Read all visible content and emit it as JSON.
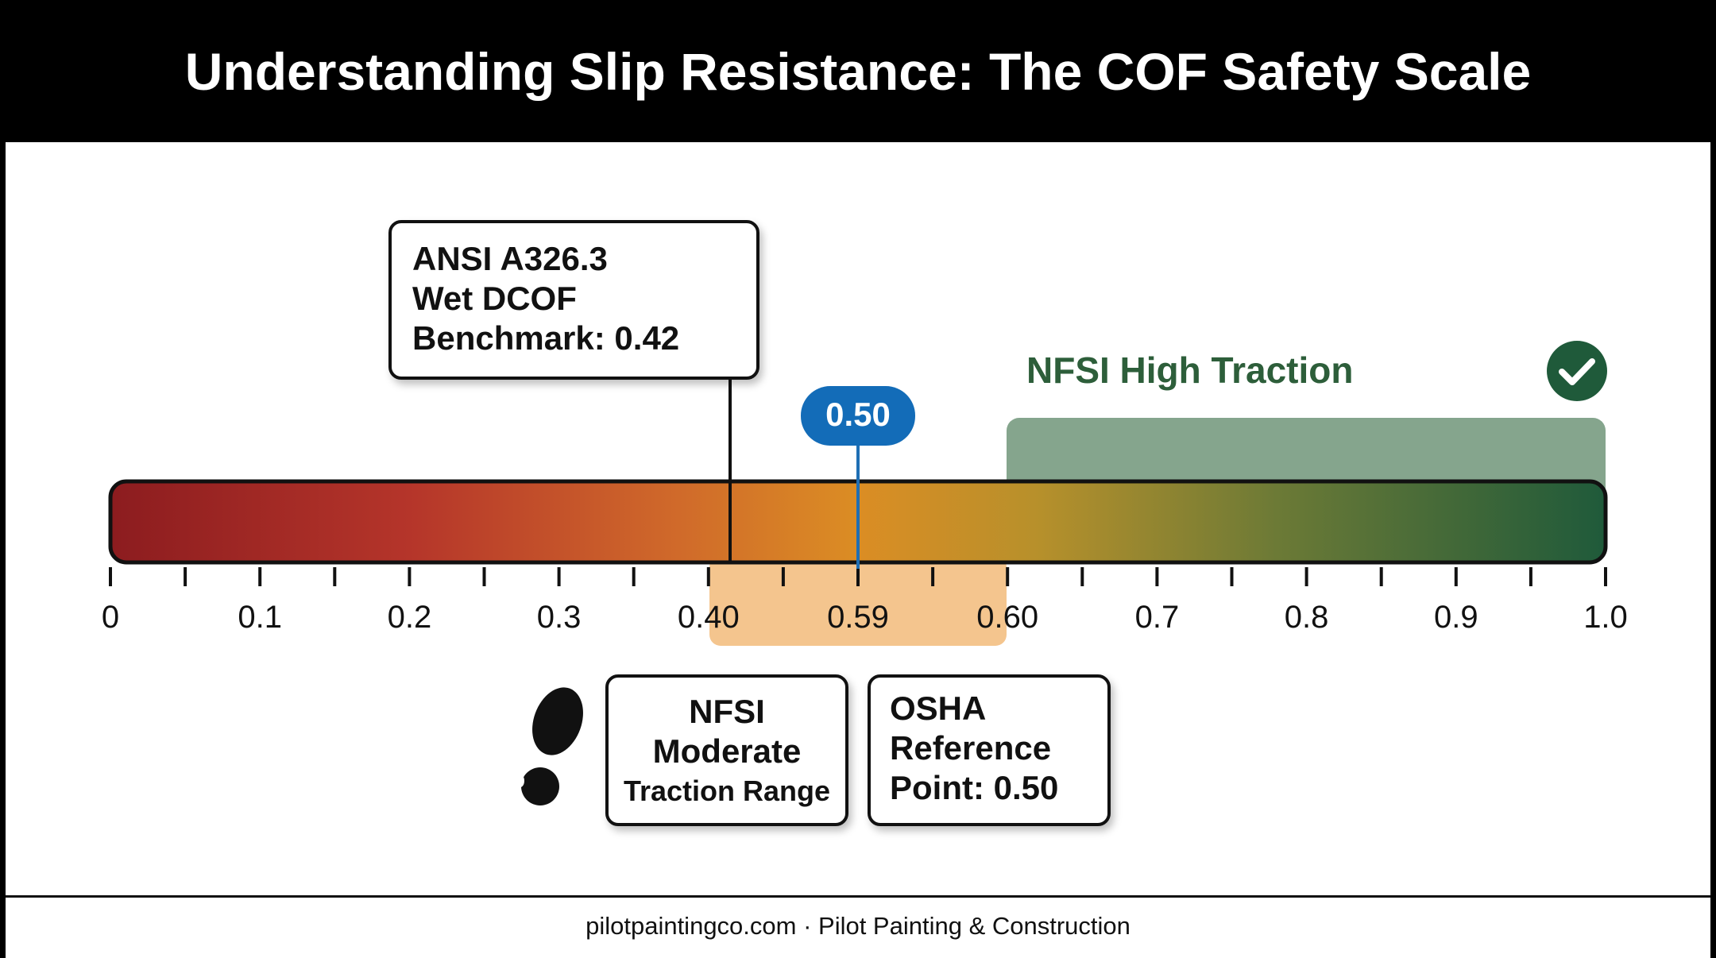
{
  "header": {
    "title": "Understanding Slip Resistance: The COF Safety Scale"
  },
  "scale": {
    "tick_labels": [
      "0",
      "0.1",
      "0.2",
      "0.3",
      "0.40",
      "0.59",
      "0.60",
      "0.7",
      "0.8",
      "0.9",
      "1.0"
    ],
    "high_label": "NFSI High Traction",
    "badge": "0.50"
  },
  "callouts": {
    "ansi": [
      "ANSI A326.3",
      "Wet DCOF",
      "Benchmark: 0.42"
    ],
    "nfsi": [
      "NFSI",
      "Moderate",
      "Traction Range"
    ],
    "osha": [
      "OSHA",
      "Reference",
      "Point: 0.50"
    ]
  },
  "footer": {
    "text": "pilotpaintingco.com · Pilot Painting & Construction"
  }
}
